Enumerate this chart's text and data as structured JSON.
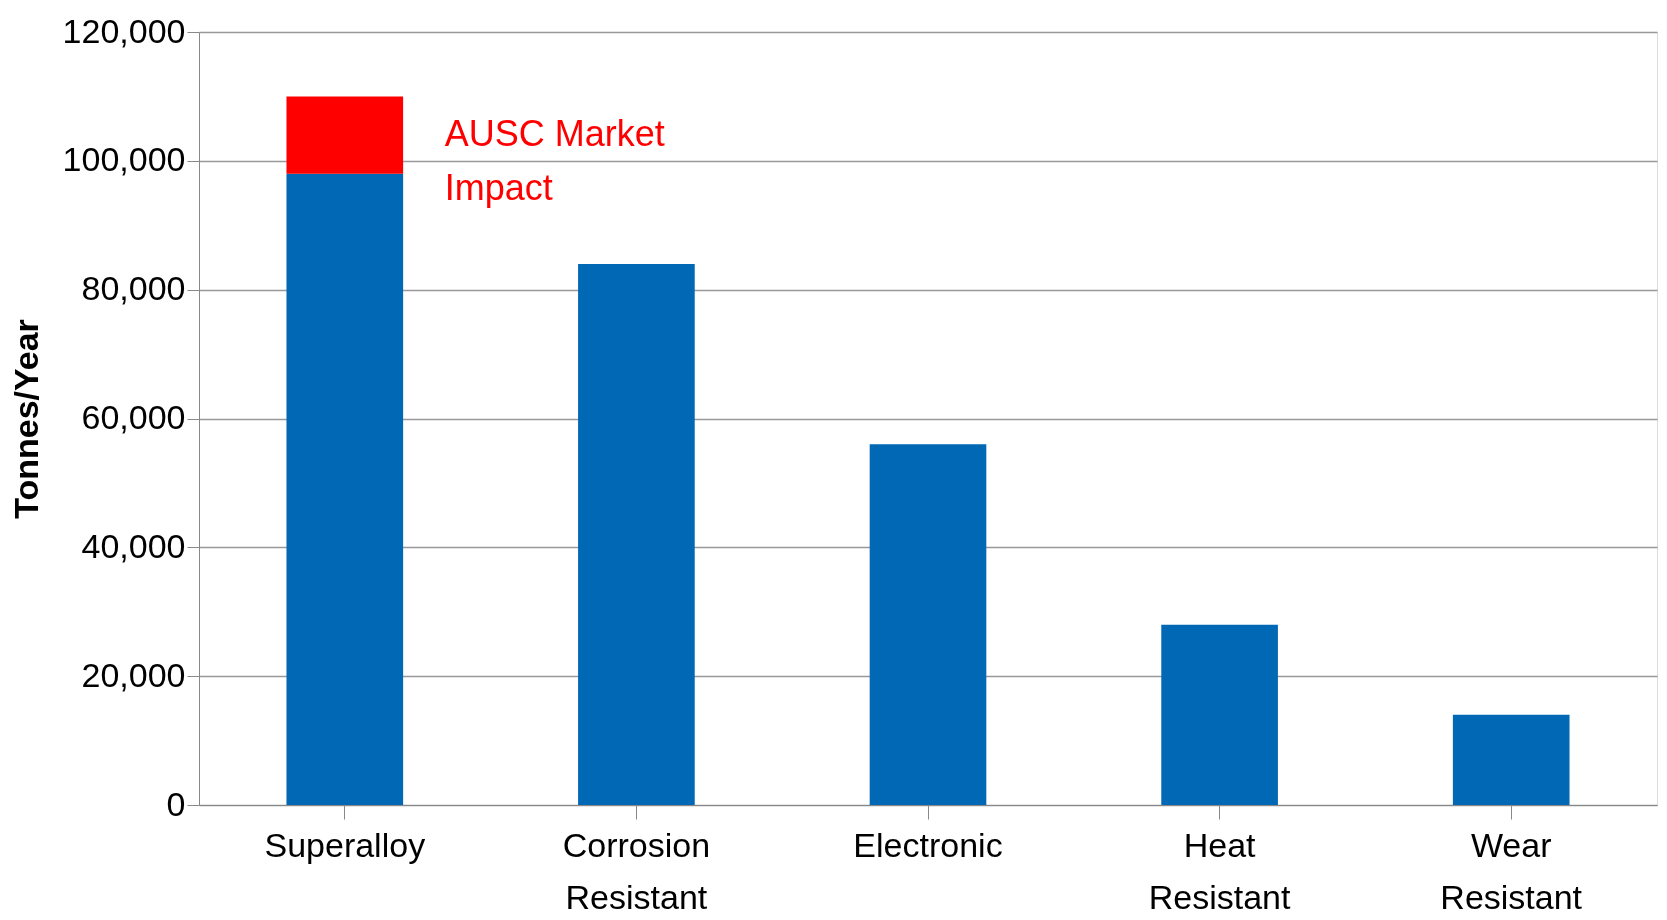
{
  "chart_data": {
    "type": "bar",
    "stacked": true,
    "ylabel": "Tonnes/Year",
    "categories": [
      "Superalloy",
      "Corrosion Resistant",
      "Electronic",
      "Heat Resistant",
      "Wear Resistant"
    ],
    "series": [
      {
        "color": "#0068b4",
        "values": [
          98000,
          84000,
          56000,
          28000,
          14000
        ]
      },
      {
        "color": "#ff0000",
        "values": [
          12000,
          null,
          null,
          null,
          null
        ]
      }
    ],
    "ylim": [
      0,
      120000
    ],
    "yticks": [
      0,
      {
        "value": 20000,
        "label": "20,000"
      },
      {
        "value": 40000,
        "label": "40,000"
      },
      {
        "value": 60000,
        "label": "60,000"
      },
      {
        "value": 80000,
        "label": "80,000"
      },
      {
        "value": 100000,
        "label": "100,000"
      },
      {
        "value": 120000,
        "label": "120,000"
      }
    ],
    "grid": "y",
    "annotations": [
      "AUSC Market Impact"
    ]
  }
}
